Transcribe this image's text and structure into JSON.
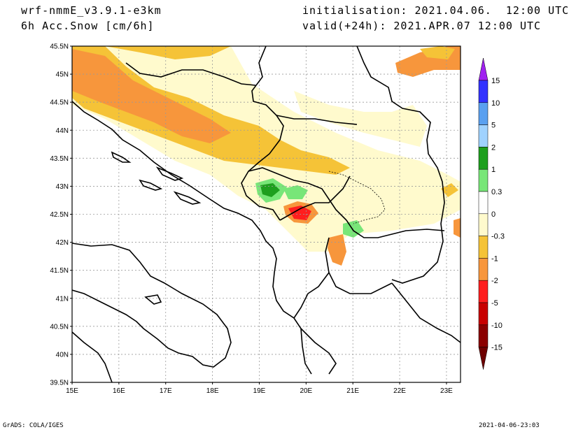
{
  "header": {
    "model": "wrf-nmmE_v3.9.1-e3km",
    "variable": "6h Acc.Snow [cm/6h]",
    "init": "initialisation: 2021.04.06.  12:00 UTC",
    "valid": "valid(+24h): 2021.APR.07 12:00 UTC"
  },
  "map": {
    "lon_range": [
      15,
      23.3
    ],
    "lat_range": [
      39.5,
      45.5
    ],
    "lat_labels": [
      "45.5N",
      "45N",
      "44.5N",
      "44N",
      "43.5N",
      "43N",
      "42.5N",
      "42N",
      "41.5N",
      "41N",
      "40.5N",
      "40N",
      "39.5N"
    ],
    "lon_labels": [
      "15E",
      "16E",
      "17E",
      "18E",
      "19E",
      "20E",
      "21E",
      "22E",
      "23E"
    ],
    "grid": true
  },
  "legend": {
    "levels": [
      "15",
      "10",
      "5",
      "2",
      "1",
      "0.3",
      "0",
      "-0.3",
      "-1",
      "-2",
      "-5",
      "-10",
      "-15"
    ],
    "colors": [
      "#a020f0",
      "#3232ff",
      "#5aa0f0",
      "#a0d2ff",
      "#1e9f1e",
      "#78e678",
      "#ffffff",
      "#fffacd",
      "#f5c337",
      "#f7963c",
      "#ff1e1e",
      "#c80000",
      "#8b0000",
      "#6e0000"
    ]
  },
  "footer": {
    "left": "GrADS: COLA/IGES",
    "right": "2021-04-06-23:03"
  }
}
